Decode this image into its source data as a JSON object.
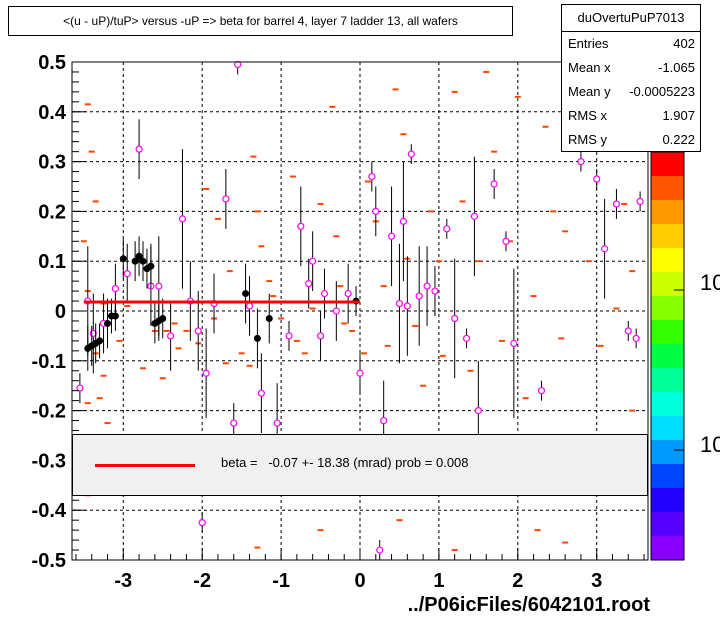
{
  "title": "<(u - uP)/tuP> versus  -uP => beta for barrel 4, layer 7 ladder 13, all wafers",
  "file_label": "../P06icFiles/6042101.root",
  "stats": {
    "name": "duOvertuPuP7013",
    "rows": [
      {
        "key": "Entries",
        "value": "402"
      },
      {
        "key": "Mean x",
        "value": "-1.065"
      },
      {
        "key": "Mean y",
        "value": "-0.0005223"
      },
      {
        "key": "RMS x",
        "value": "1.907"
      },
      {
        "key": "RMS y",
        "value": "0.222"
      }
    ]
  },
  "legend": {
    "text": "beta =   -0.07 +- 18.38 (mrad) prob = 0.008",
    "line_color": "#ff0000"
  },
  "palette_labels": [
    "10",
    "10"
  ],
  "chart_data": {
    "type": "scatter",
    "xlim": [
      -3.65,
      3.65
    ],
    "ylim": [
      -0.5,
      0.5
    ],
    "x_ticks": [
      {
        "v": -3,
        "label": "-3"
      },
      {
        "v": -2,
        "label": "-2"
      },
      {
        "v": -1,
        "label": "-1"
      },
      {
        "v": 0,
        "label": "0"
      },
      {
        "v": 1,
        "label": "1"
      },
      {
        "v": 2,
        "label": "2"
      },
      {
        "v": 3,
        "label": "3"
      }
    ],
    "y_ticks": [
      {
        "v": 0.5,
        "label": "0.5"
      },
      {
        "v": 0.4,
        "label": "0.4"
      },
      {
        "v": 0.3,
        "label": "0.3"
      },
      {
        "v": 0.2,
        "label": "0.2"
      },
      {
        "v": 0.1,
        "label": "0.1"
      },
      {
        "v": 0,
        "label": "0"
      },
      {
        "v": -0.1,
        "label": "-0.1"
      },
      {
        "v": -0.2,
        "label": "-0.2"
      },
      {
        "v": -0.3,
        "label": "-0.3"
      },
      {
        "v": -0.4,
        "label": "-0.4"
      },
      {
        "v": -0.5,
        "label": "-0.5"
      }
    ],
    "grid": true,
    "fit_line": {
      "x": [
        -3.5,
        0.0
      ],
      "y": [
        0.018,
        0.018
      ],
      "color": "#ff0000"
    },
    "colors": {
      "black": "#000000",
      "magenta": "#ff00ff",
      "orange": "#ff4400",
      "fit": "#ff0000"
    },
    "black_points": [
      {
        "x": -3.45,
        "y": -0.075,
        "e": 0.045
      },
      {
        "x": -3.4,
        "y": -0.07,
        "e": 0.04
      },
      {
        "x": -3.35,
        "y": -0.065,
        "e": 0.04
      },
      {
        "x": -3.3,
        "y": -0.06,
        "e": 0.035
      },
      {
        "x": -3.2,
        "y": -0.025,
        "e": 0.05
      },
      {
        "x": -3.15,
        "y": -0.01,
        "e": 0.035
      },
      {
        "x": -3.1,
        "y": -0.01,
        "e": 0.03
      },
      {
        "x": -3.0,
        "y": 0.105,
        "e": 0.04
      },
      {
        "x": -2.85,
        "y": 0.1,
        "e": 0.04
      },
      {
        "x": -2.8,
        "y": 0.11,
        "e": 0.04
      },
      {
        "x": -2.75,
        "y": 0.1,
        "e": 0.04
      },
      {
        "x": -2.7,
        "y": 0.085,
        "e": 0.04
      },
      {
        "x": -2.65,
        "y": 0.09,
        "e": 0.045
      },
      {
        "x": -2.6,
        "y": -0.025,
        "e": 0.04
      },
      {
        "x": -2.55,
        "y": -0.02,
        "e": 0.04
      },
      {
        "x": -2.5,
        "y": -0.015,
        "e": 0.04
      },
      {
        "x": -1.45,
        "y": 0.035,
        "e": 0.06
      },
      {
        "x": -1.3,
        "y": -0.055,
        "e": 0.06
      },
      {
        "x": -1.15,
        "y": -0.015,
        "e": 0.05
      },
      {
        "x": -0.05,
        "y": 0.02,
        "e": 0.03
      }
    ],
    "magenta_points": [
      {
        "x": -3.55,
        "y": -0.155,
        "e": 0.03
      },
      {
        "x": -3.45,
        "y": 0.02,
        "e": 0.11
      },
      {
        "x": -3.38,
        "y": -0.045,
        "e": 0.08
      },
      {
        "x": -3.25,
        "y": -0.025,
        "e": 0.06
      },
      {
        "x": -3.1,
        "y": 0.045,
        "e": 0.05
      },
      {
        "x": -2.95,
        "y": 0.075,
        "e": 0.06
      },
      {
        "x": -2.8,
        "y": 0.325,
        "e": 0.06
      },
      {
        "x": -2.65,
        "y": 0.05,
        "e": 0.08
      },
      {
        "x": -2.55,
        "y": 0.05,
        "e": 0.1
      },
      {
        "x": -2.4,
        "y": -0.05,
        "e": 0.07
      },
      {
        "x": -2.25,
        "y": 0.185,
        "e": 0.14
      },
      {
        "x": -2.15,
        "y": 0.02,
        "e": 0.08
      },
      {
        "x": -2.05,
        "y": -0.04,
        "e": 0.08
      },
      {
        "x": -1.95,
        "y": -0.125,
        "e": 0.09
      },
      {
        "x": -1.85,
        "y": 0.015,
        "e": 0.06
      },
      {
        "x": -1.7,
        "y": 0.225,
        "e": 0.06
      },
      {
        "x": -1.6,
        "y": -0.225,
        "e": 0.04
      },
      {
        "x": -1.55,
        "y": 0.495,
        "e": 0.02
      },
      {
        "x": -1.4,
        "y": 0.01,
        "e": 0.06
      },
      {
        "x": -1.25,
        "y": -0.165,
        "e": 0.08
      },
      {
        "x": -1.05,
        "y": -0.225,
        "e": 0.08
      },
      {
        "x": -0.9,
        "y": -0.05,
        "e": 0.03
      },
      {
        "x": -0.75,
        "y": 0.17,
        "e": 0.08
      },
      {
        "x": -0.65,
        "y": 0.055,
        "e": 0.05
      },
      {
        "x": -0.6,
        "y": 0.1,
        "e": 0.06
      },
      {
        "x": -0.5,
        "y": -0.05,
        "e": 0.05
      },
      {
        "x": -0.45,
        "y": 0.035,
        "e": 0.05
      },
      {
        "x": -0.3,
        "y": 0.0,
        "e": 0.06
      },
      {
        "x": -0.15,
        "y": 0.035,
        "e": 0.06
      },
      {
        "x": 0.0,
        "y": -0.125,
        "e": 0.04
      },
      {
        "x": 0.15,
        "y": 0.27,
        "e": 0.03
      },
      {
        "x": 0.2,
        "y": 0.2,
        "e": 0.05
      },
      {
        "x": 0.3,
        "y": -0.22,
        "e": 0.08
      },
      {
        "x": 0.4,
        "y": 0.15,
        "e": 0.1
      },
      {
        "x": 0.5,
        "y": 0.015,
        "e": 0.12
      },
      {
        "x": 0.55,
        "y": 0.18,
        "e": 0.12
      },
      {
        "x": 0.6,
        "y": 0.01,
        "e": 0.1
      },
      {
        "x": 0.65,
        "y": 0.315,
        "e": 0.02
      },
      {
        "x": 0.75,
        "y": 0.03,
        "e": 0.1
      },
      {
        "x": 0.85,
        "y": 0.05,
        "e": 0.08
      },
      {
        "x": 0.95,
        "y": 0.04,
        "e": 0.05
      },
      {
        "x": 1.1,
        "y": 0.165,
        "e": 0.02
      },
      {
        "x": 1.2,
        "y": -0.015,
        "e": 0.12
      },
      {
        "x": 1.35,
        "y": -0.055,
        "e": 0.02
      },
      {
        "x": 1.45,
        "y": 0.19,
        "e": 0.12
      },
      {
        "x": 1.5,
        "y": -0.2,
        "e": 0.1
      },
      {
        "x": 1.7,
        "y": 0.255,
        "e": 0.03
      },
      {
        "x": 1.85,
        "y": 0.14,
        "e": 0.02
      },
      {
        "x": 1.95,
        "y": -0.065,
        "e": 0.15
      },
      {
        "x": 2.3,
        "y": -0.16,
        "e": 0.02
      },
      {
        "x": 2.8,
        "y": 0.3,
        "e": 0.02
      },
      {
        "x": 3.0,
        "y": 0.265,
        "e": 0.02
      },
      {
        "x": 3.1,
        "y": 0.125,
        "e": 0.1
      },
      {
        "x": 3.25,
        "y": 0.215,
        "e": 0.03
      },
      {
        "x": 3.4,
        "y": -0.04,
        "e": 0.02
      },
      {
        "x": 3.5,
        "y": -0.055,
        "e": 0.02
      },
      {
        "x": 3.55,
        "y": 0.22,
        "e": 0.02
      },
      {
        "x": -2.0,
        "y": -0.425,
        "e": 0.02
      },
      {
        "x": 0.25,
        "y": -0.48,
        "e": 0.02
      }
    ],
    "orange_marks": [
      {
        "x": -3.45,
        "y": 0.415
      },
      {
        "x": -3.4,
        "y": 0.32
      },
      {
        "x": -3.35,
        "y": 0.22
      },
      {
        "x": -3.5,
        "y": 0.14
      },
      {
        "x": -3.45,
        "y": 0.04
      },
      {
        "x": -3.25,
        "y": 0.015
      },
      {
        "x": -3.35,
        "y": -0.085
      },
      {
        "x": -3.25,
        "y": -0.13
      },
      {
        "x": -3.3,
        "y": -0.175
      },
      {
        "x": -3.2,
        "y": -0.225
      },
      {
        "x": -3.45,
        "y": -0.185
      },
      {
        "x": -3.05,
        "y": -0.06
      },
      {
        "x": -2.95,
        "y": 0.01
      },
      {
        "x": -2.75,
        "y": -0.115
      },
      {
        "x": -2.6,
        "y": -0.04
      },
      {
        "x": -2.5,
        "y": -0.135
      },
      {
        "x": -2.45,
        "y": -0.04
      },
      {
        "x": -2.35,
        "y": -0.025
      },
      {
        "x": -2.3,
        "y": -0.075
      },
      {
        "x": -2.2,
        "y": -0.04
      },
      {
        "x": -1.95,
        "y": 0.245
      },
      {
        "x": -2.05,
        "y": -0.065
      },
      {
        "x": -1.8,
        "y": 0.185
      },
      {
        "x": -1.85,
        "y": -0.015
      },
      {
        "x": -1.65,
        "y": 0.08
      },
      {
        "x": -1.7,
        "y": -0.105
      },
      {
        "x": -1.5,
        "y": -0.085
      },
      {
        "x": -1.4,
        "y": -0.11
      },
      {
        "x": -1.35,
        "y": 0.31
      },
      {
        "x": -1.3,
        "y": 0.2
      },
      {
        "x": -1.25,
        "y": 0.13
      },
      {
        "x": -1.15,
        "y": 0.06
      },
      {
        "x": -1.1,
        "y": 0.03
      },
      {
        "x": -1.0,
        "y": -0.015
      },
      {
        "x": -0.85,
        "y": 0.27
      },
      {
        "x": -0.8,
        "y": -0.06
      },
      {
        "x": -0.7,
        "y": -0.085
      },
      {
        "x": -0.6,
        "y": 0.005
      },
      {
        "x": -0.5,
        "y": 0.215
      },
      {
        "x": -0.35,
        "y": 0.41
      },
      {
        "x": -0.3,
        "y": 0.15
      },
      {
        "x": -0.25,
        "y": 0.05
      },
      {
        "x": -0.2,
        "y": -0.025
      },
      {
        "x": -0.1,
        "y": -0.04
      },
      {
        "x": 0.05,
        "y": -0.085
      },
      {
        "x": 0.1,
        "y": 0.26
      },
      {
        "x": 0.2,
        "y": 0.18
      },
      {
        "x": 0.3,
        "y": 0.05
      },
      {
        "x": 0.35,
        "y": -0.07
      },
      {
        "x": 0.45,
        "y": 0.445
      },
      {
        "x": 0.55,
        "y": 0.355
      },
      {
        "x": 0.6,
        "y": 0.105
      },
      {
        "x": 0.7,
        "y": -0.03
      },
      {
        "x": 0.8,
        "y": -0.15
      },
      {
        "x": 0.9,
        "y": 0.2
      },
      {
        "x": 1.0,
        "y": 0.1
      },
      {
        "x": 1.05,
        "y": -0.09
      },
      {
        "x": 1.2,
        "y": 0.44
      },
      {
        "x": 1.3,
        "y": 0.22
      },
      {
        "x": 1.4,
        "y": -0.12
      },
      {
        "x": 1.5,
        "y": 0.1
      },
      {
        "x": 1.6,
        "y": 0.48
      },
      {
        "x": 1.7,
        "y": 0.32
      },
      {
        "x": 1.8,
        "y": -0.06
      },
      {
        "x": 1.9,
        "y": 0.14
      },
      {
        "x": 2.0,
        "y": 0.43
      },
      {
        "x": 2.1,
        "y": -0.175
      },
      {
        "x": 2.2,
        "y": 0.03
      },
      {
        "x": 2.35,
        "y": 0.37
      },
      {
        "x": 2.45,
        "y": 0.2
      },
      {
        "x": 2.55,
        "y": -0.055
      },
      {
        "x": 2.6,
        "y": 0.16
      },
      {
        "x": 2.9,
        "y": 0.1
      },
      {
        "x": 3.05,
        "y": -0.07
      },
      {
        "x": 3.25,
        "y": 0.005
      },
      {
        "x": 3.35,
        "y": 0.215
      },
      {
        "x": 3.45,
        "y": 0.08
      },
      {
        "x": 3.45,
        "y": -0.2
      },
      {
        "x": -3.45,
        "y": -0.37
      },
      {
        "x": -1.3,
        "y": -0.475
      },
      {
        "x": -0.5,
        "y": -0.44
      },
      {
        "x": 0.5,
        "y": -0.42
      },
      {
        "x": 1.2,
        "y": -0.48
      },
      {
        "x": 2.25,
        "y": -0.44
      },
      {
        "x": 2.6,
        "y": -0.465
      }
    ]
  }
}
